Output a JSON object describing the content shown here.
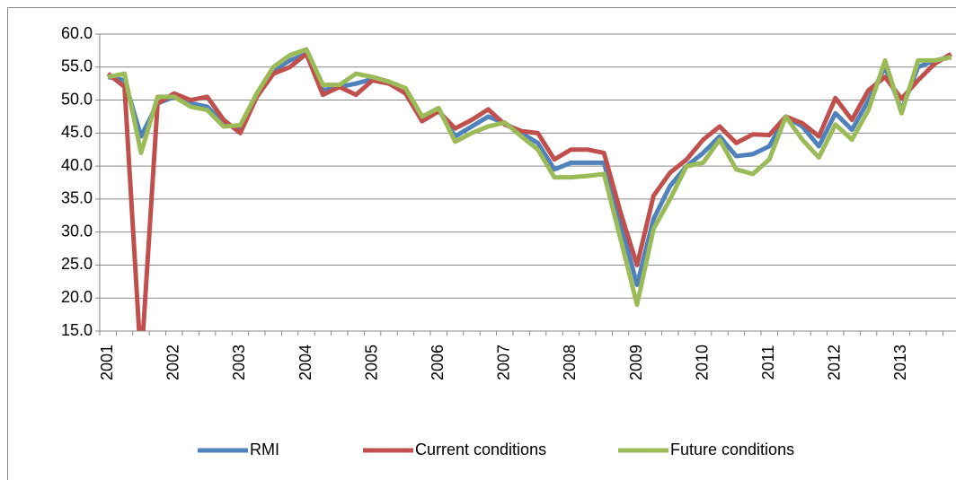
{
  "chart_data": {
    "type": "line",
    "categories": [
      "2001",
      null,
      null,
      null,
      "2002",
      null,
      null,
      null,
      "2003",
      null,
      null,
      null,
      "2004",
      null,
      null,
      null,
      "2005",
      null,
      null,
      null,
      "2006",
      null,
      null,
      null,
      "2007",
      null,
      null,
      null,
      "2008",
      null,
      null,
      null,
      "2009",
      null,
      null,
      null,
      "2010",
      null,
      null,
      null,
      "2011",
      null,
      null,
      null,
      "2012",
      null,
      null,
      null,
      "2013",
      null,
      null,
      null
    ],
    "series": [
      {
        "name": "RMI",
        "color": "#4f81bd",
        "values": [
          53.5,
          53,
          44.5,
          49.5,
          50.5,
          49.5,
          49,
          46.5,
          45.5,
          50.5,
          54.5,
          56,
          57,
          51.5,
          52,
          52.5,
          53.2,
          52.5,
          51.5,
          47,
          48.5,
          44.5,
          46,
          47.5,
          46.5,
          45,
          43.5,
          39.5,
          40.5,
          40.5,
          40.5,
          31.5,
          22,
          32,
          37,
          40,
          42,
          44.5,
          41.5,
          41.8,
          43,
          47.5,
          46,
          43,
          48,
          45.5,
          50,
          55,
          48.5,
          55,
          56,
          56.5
        ]
      },
      {
        "name": "Current conditions",
        "color": "#c0504d",
        "values": [
          54,
          52,
          10,
          49.5,
          51,
          50,
          50.5,
          47,
          45,
          50.5,
          54,
          55,
          57,
          50.8,
          52,
          50.8,
          53,
          52.5,
          51,
          46.8,
          48.3,
          45.7,
          47,
          48.6,
          46.3,
          45.3,
          45,
          41,
          42.5,
          42.5,
          42,
          33,
          25,
          35.5,
          39,
          41,
          44,
          46,
          43.5,
          44.8,
          44.7,
          47.5,
          46.5,
          44.5,
          50.3,
          47,
          51.5,
          53.5,
          50.2,
          53,
          55.5,
          57
        ]
      },
      {
        "name": "Future conditions",
        "color": "#9bbb59",
        "values": [
          53.5,
          54,
          42,
          50.5,
          50.5,
          49,
          48.5,
          46,
          46.2,
          51,
          55,
          56.8,
          57.7,
          52.3,
          52.3,
          54,
          53.5,
          52.8,
          51.8,
          47.5,
          48.8,
          43.7,
          45,
          46,
          46.6,
          44.5,
          42.5,
          38.3,
          38.3,
          38.5,
          38.8,
          29,
          19,
          30.5,
          35,
          40,
          40.5,
          44,
          39.5,
          38.8,
          41,
          47.5,
          44,
          41.3,
          46.3,
          44,
          48.5,
          56,
          48,
          56,
          56,
          56.5
        ]
      }
    ],
    "ylim": [
      15,
      60
    ],
    "yticks": [
      {
        "value": 15,
        "label": "15.0"
      },
      {
        "value": 20,
        "label": "20.0"
      },
      {
        "value": 25,
        "label": "25.0"
      },
      {
        "value": 30,
        "label": "30.0"
      },
      {
        "value": 35,
        "label": "35.0"
      },
      {
        "value": 40,
        "label": "40.0"
      },
      {
        "value": 45,
        "label": "45.0"
      },
      {
        "value": 50,
        "label": "50.0"
      },
      {
        "value": 55,
        "label": "55.0"
      },
      {
        "value": 60,
        "label": "60.0"
      }
    ],
    "grid": true,
    "legend": "bottom"
  }
}
